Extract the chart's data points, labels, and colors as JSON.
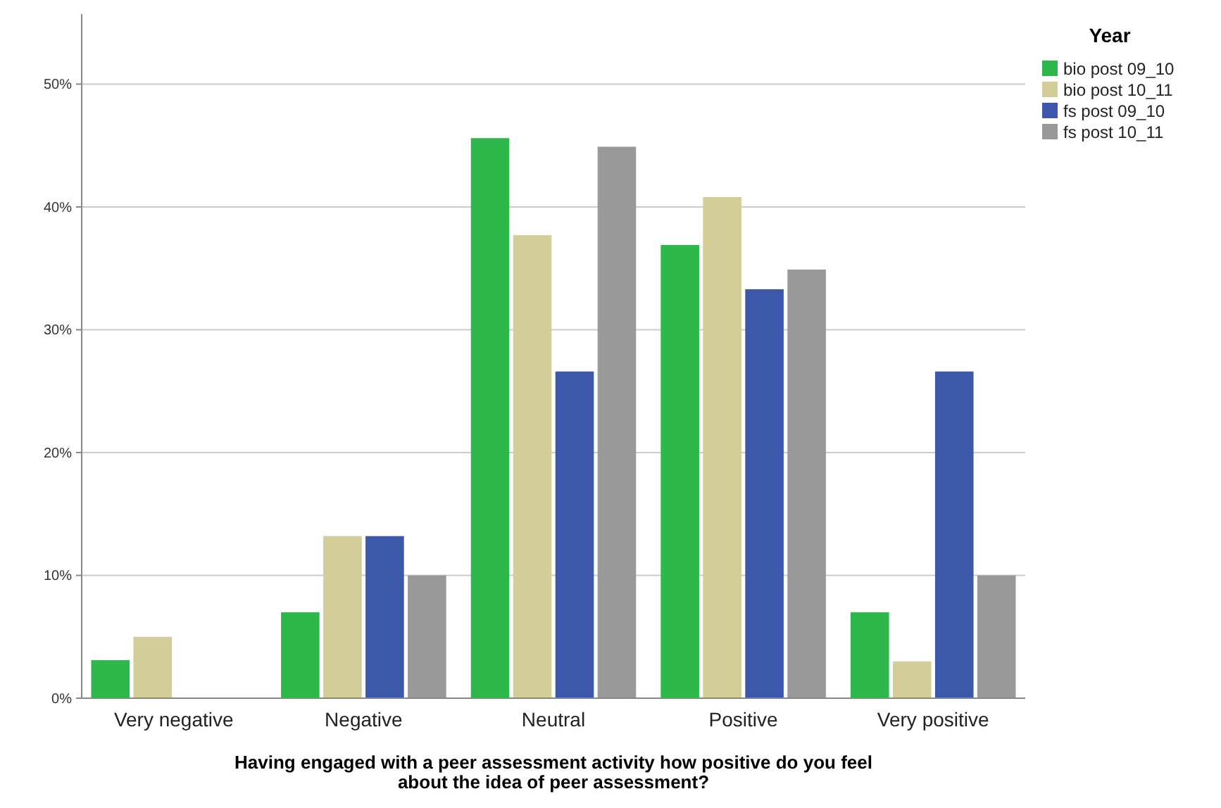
{
  "chart_data": {
    "type": "bar",
    "xlabel": "Having engaged with a peer assessment activity how positive do you feel about the idea of peer assessment?",
    "legend_title": "Year",
    "categories": [
      "Very negative",
      "Negative",
      "Neutral",
      "Positive",
      "Very positive"
    ],
    "series": [
      {
        "name": "bio post 09_10",
        "color": "#2eb74a",
        "values": [
          3.1,
          7.0,
          45.6,
          36.9,
          7.0
        ]
      },
      {
        "name": "bio post 10_11",
        "color": "#d3ce98",
        "values": [
          5.0,
          13.2,
          37.7,
          40.8,
          3.0
        ]
      },
      {
        "name": "fs post 09_10",
        "color": "#3d58ab",
        "values": [
          0,
          13.2,
          26.6,
          33.3,
          26.6
        ]
      },
      {
        "name": "fs post 10_11",
        "color": "#999999",
        "values": [
          0,
          10.0,
          44.9,
          34.9,
          10.0
        ]
      }
    ],
    "ylim": [
      0,
      55.7
    ],
    "yticks": [
      {
        "value": 0,
        "label": "0%"
      },
      {
        "value": 10,
        "label": "10%"
      },
      {
        "value": 20,
        "label": "20%"
      },
      {
        "value": 30,
        "label": "30%"
      },
      {
        "value": 40,
        "label": "40%"
      },
      {
        "value": 50,
        "label": "50%"
      }
    ],
    "grid": "y",
    "legend": "top right"
  }
}
